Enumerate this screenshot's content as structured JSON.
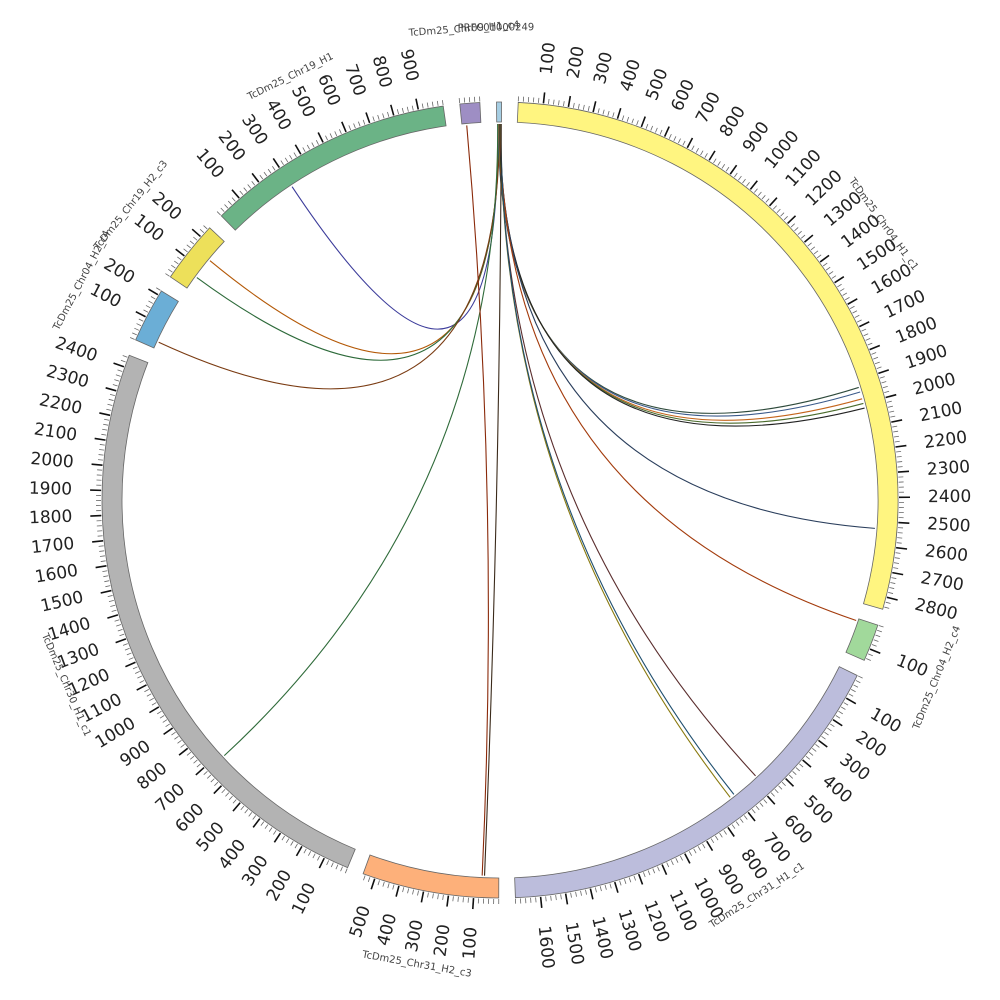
{
  "chart_data": {
    "type": "chord",
    "segments": [
      {
        "name": "PRFC01000249",
        "length": 20,
        "color": "#a6cee3",
        "label": "PRFC01000249",
        "ticks": [],
        "label_offset": 0
      },
      {
        "name": "TcDm25_Chr04_H1_c1",
        "length": 2850,
        "color": "#fff580",
        "label": "TcDm25_Chr04_H1_c1",
        "ticks": [
          100,
          200,
          300,
          400,
          500,
          600,
          700,
          800,
          900,
          1000,
          1100,
          1200,
          1300,
          1400,
          1500,
          1600,
          1700,
          1800,
          1900,
          2000,
          2100,
          2200,
          2300,
          2400,
          2500,
          2600,
          2700,
          2800
        ],
        "label_offset": 0.5
      },
      {
        "name": "TcDm25_Chr04_H2_c4",
        "length": 150,
        "color": "#a1d99b",
        "label": "TcDm25_Chr04_H2_c4",
        "ticks": [
          100
        ],
        "label_offset": 0.7
      },
      {
        "name": "TcDm25_Chr31_H1_c1",
        "length": 1700,
        "color": "#bcbddc",
        "label": "TcDm25_Chr31_H1_c1",
        "ticks": [
          100,
          200,
          300,
          400,
          500,
          600,
          700,
          800,
          900,
          1000,
          1100,
          1200,
          1300,
          1400,
          1500,
          1600
        ],
        "label_offset": 0.5
      },
      {
        "name": "TcDm25_Chr31_H2_c3",
        "length": 550,
        "color": "#fdb07a",
        "label": "TcDm25_Chr31_H2_c3",
        "ticks": [
          100,
          200,
          300,
          400,
          500
        ],
        "label_offset": 0.5
      },
      {
        "name": "TcDm25_Chr30_H1_c1",
        "length": 2450,
        "color": "#b3b3b3",
        "label": "TcDm25_Chr30_H1_c1",
        "ticks": [
          100,
          200,
          300,
          400,
          500,
          600,
          700,
          800,
          900,
          1000,
          1100,
          1200,
          1300,
          1400,
          1500,
          1600,
          1700,
          1800,
          1900,
          2000,
          2100,
          2200,
          2300,
          2400
        ],
        "label_offset": 0.5
      },
      {
        "name": "TcDm25_Chr04_H2_c4b",
        "length": 220,
        "color": "#6baed6",
        "label": "TcDm25_Chr04_H2_c4",
        "ticks": [
          100,
          200
        ],
        "label_offset": 0.5
      },
      {
        "name": "TcDm25_Chr19_H2_c3",
        "length": 250,
        "color": "#ede05a",
        "label": "TcDm25_Chr19_H2_c3",
        "ticks": [
          100,
          200
        ],
        "label_offset": 0.5
      },
      {
        "name": "TcDm25_Chr19_H1",
        "length": 1000,
        "color": "#6bb386",
        "label": "TcDm25_Chr19_H1",
        "ticks": [
          100,
          200,
          300,
          400,
          500,
          600,
          700,
          800,
          900
        ],
        "label_offset": 0.5
      },
      {
        "name": "TcDm25_Chr09_H1_c4",
        "length": 80,
        "color": "#9e8ec4",
        "label": "TcDm25_Chr09_H1_c4",
        "ticks": [],
        "label_offset": 0.5
      }
    ],
    "links": [
      {
        "from": [
          "PRFC01000249",
          5
        ],
        "to": [
          "TcDm25_Chr19_H1",
          300
        ],
        "color": "#3b3b9a"
      },
      {
        "from": [
          "PRFC01000249",
          8
        ],
        "to": [
          "TcDm25_Chr19_H2_c3",
          150
        ],
        "color": "#b35806"
      },
      {
        "from": [
          "PRFC01000249",
          10
        ],
        "to": [
          "TcDm25_Chr19_H2_c3",
          60
        ],
        "color": "#2d6a3a"
      },
      {
        "from": [
          "PRFC01000249",
          12
        ],
        "to": [
          "TcDm25_Chr04_H2_c4b",
          30
        ],
        "color": "#7a3b12"
      },
      {
        "from": [
          "PRFC01000249",
          6
        ],
        "to": [
          "TcDm25_Chr04_H1_c1",
          1930
        ],
        "color": "#2e4a3b"
      },
      {
        "from": [
          "PRFC01000249",
          7
        ],
        "to": [
          "TcDm25_Chr04_H1_c1",
          1950
        ],
        "color": "#3b5a8a"
      },
      {
        "from": [
          "PRFC01000249",
          9
        ],
        "to": [
          "TcDm25_Chr04_H1_c1",
          1980
        ],
        "color": "#c4651c"
      },
      {
        "from": [
          "PRFC01000249",
          11
        ],
        "to": [
          "TcDm25_Chr04_H1_c1",
          2000
        ],
        "color": "#4a6b2c"
      },
      {
        "from": [
          "PRFC01000249",
          13
        ],
        "to": [
          "TcDm25_Chr04_H1_c1",
          2020
        ],
        "color": "#222222"
      },
      {
        "from": [
          "PRFC01000249",
          14
        ],
        "to": [
          "TcDm25_Chr04_H1_c1",
          2530
        ],
        "color": "#2a3e5c"
      },
      {
        "from": [
          "PRFC01000249",
          15
        ],
        "to": [
          "TcDm25_Chr04_H2_c4",
          10
        ],
        "color": "#a33b0c"
      },
      {
        "from": [
          "PRFC01000249",
          16
        ],
        "to": [
          "TcDm25_Chr31_H1_c1",
          580
        ],
        "color": "#5a2d2d"
      },
      {
        "from": [
          "PRFC01000249",
          17
        ],
        "to": [
          "TcDm25_Chr31_H1_c1",
          720
        ],
        "color": "#8a7a10"
      },
      {
        "from": [
          "PRFC01000249",
          18
        ],
        "to": [
          "TcDm25_Chr31_H1_c1",
          700
        ],
        "color": "#1f4f6f"
      },
      {
        "from": [
          "PRFC01000249",
          19
        ],
        "to": [
          "TcDm25_Chr31_H2_c3",
          60
        ],
        "color": "#3a2a1a"
      },
      {
        "from": [
          "PRFC01000249",
          4
        ],
        "to": [
          "TcDm25_Chr30_H1_c1",
          680
        ],
        "color": "#2f6b3a"
      },
      {
        "from": [
          "TcDm25_Chr09_H1_c4",
          20
        ],
        "to": [
          "TcDm25_Chr31_H2_c3",
          70
        ],
        "color": "#8a2a0a"
      }
    ]
  }
}
